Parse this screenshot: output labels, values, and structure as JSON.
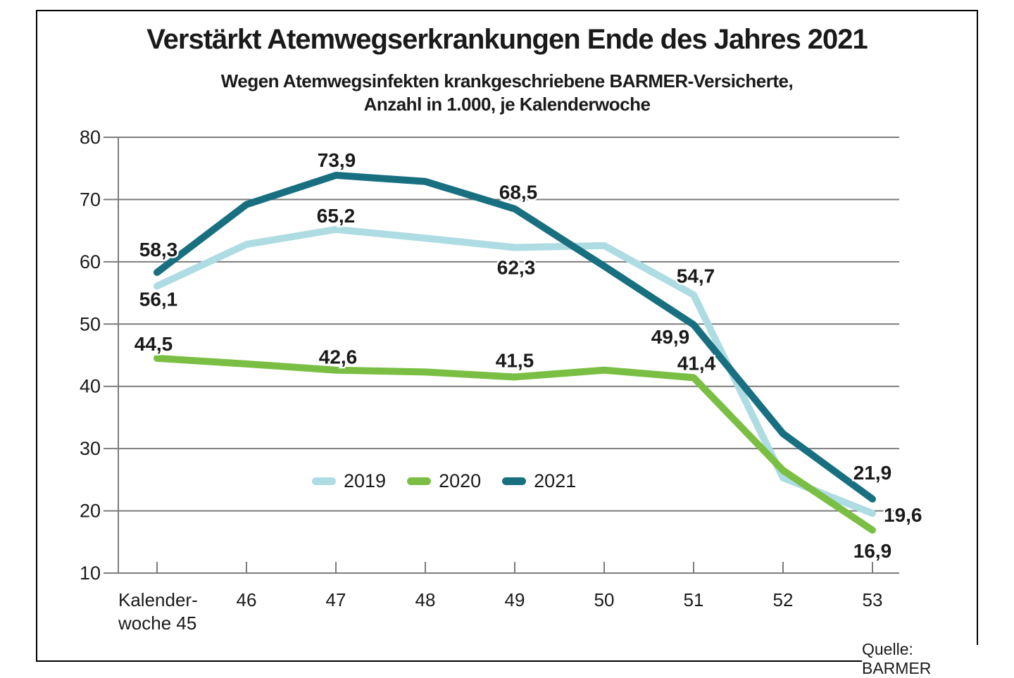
{
  "title": "Verstärkt Atemwegserkrankungen Ende des Jahres 2021",
  "subtitle_line1": "Wegen Atemwegsinfekten krankgeschriebene BARMER-Versicherte,",
  "subtitle_line2": "Anzahl in 1.000, je Kalenderwoche",
  "source": "Quelle: BARMER",
  "chart_data": {
    "type": "line",
    "title": "Verstärkt Atemwegserkrankungen Ende des Jahres 2021",
    "subtitle": "Wegen Atemwegsinfekten krankgeschriebene BARMER-Versicherte, Anzahl in 1.000, je Kalenderwoche",
    "xlabel": "Kalenderwoche",
    "ylabel": "Anzahl in 1.000",
    "x_labels": [
      "Kalender-\nwoche 45",
      "46",
      "47",
      "48",
      "49",
      "50",
      "51",
      "52",
      "53"
    ],
    "categories": [
      45,
      46,
      47,
      48,
      49,
      50,
      51,
      52,
      53
    ],
    "y_ticks": [
      10,
      20,
      30,
      40,
      50,
      60,
      70,
      80
    ],
    "ylim": [
      10,
      80
    ],
    "grid": true,
    "legend_position": "inside-bottom-center",
    "grid_color": "#7c7c7c",
    "series": [
      {
        "name": "2019",
        "color": "#aedce3",
        "values": [
          56.1,
          62.8,
          65.2,
          63.8,
          62.3,
          62.6,
          54.7,
          25.3,
          19.6
        ],
        "labels": [
          {
            "i": 0,
            "text": "56,1",
            "dx": 2,
            "dy": 28
          },
          {
            "i": 2,
            "text": "65,2",
            "dx": 0,
            "dy": -10
          },
          {
            "i": 4,
            "text": "62,3",
            "dx": 2,
            "dy": 38
          },
          {
            "i": 6,
            "text": "54,7",
            "dx": 3,
            "dy": -17
          },
          {
            "i": 8,
            "text": "19,6",
            "dx": 16,
            "dy": 12,
            "anchor": "start"
          }
        ]
      },
      {
        "name": "2020",
        "color": "#7abf43",
        "values": [
          44.5,
          43.6,
          42.6,
          42.3,
          41.5,
          42.6,
          41.4,
          26.5,
          16.9
        ],
        "labels": [
          {
            "i": 0,
            "text": "44,5",
            "dx": -5,
            "dy": -11
          },
          {
            "i": 2,
            "text": "42,6",
            "dx": 3,
            "dy": -9
          },
          {
            "i": 4,
            "text": "41,5",
            "dx": 0,
            "dy": -14
          },
          {
            "i": 6,
            "text": "41,4",
            "dx": 4,
            "dy": -11
          },
          {
            "i": 8,
            "text": "16,9",
            "dx": 0,
            "dy": 39
          }
        ]
      },
      {
        "name": "2021",
        "color": "#186f80",
        "values": [
          58.3,
          69.2,
          73.9,
          72.9,
          68.5,
          59.3,
          49.9,
          32.4,
          21.9
        ],
        "labels": [
          {
            "i": 0,
            "text": "58,3",
            "dx": 2,
            "dy": -23
          },
          {
            "i": 2,
            "text": "73,9",
            "dx": 1,
            "dy": -12
          },
          {
            "i": 4,
            "text": "68,5",
            "dx": 5,
            "dy": -14
          },
          {
            "i": 6,
            "text": "49,9",
            "dx": -33,
            "dy": 27
          },
          {
            "i": 8,
            "text": "21,9",
            "dx": 0,
            "dy": -28
          }
        ]
      }
    ]
  }
}
